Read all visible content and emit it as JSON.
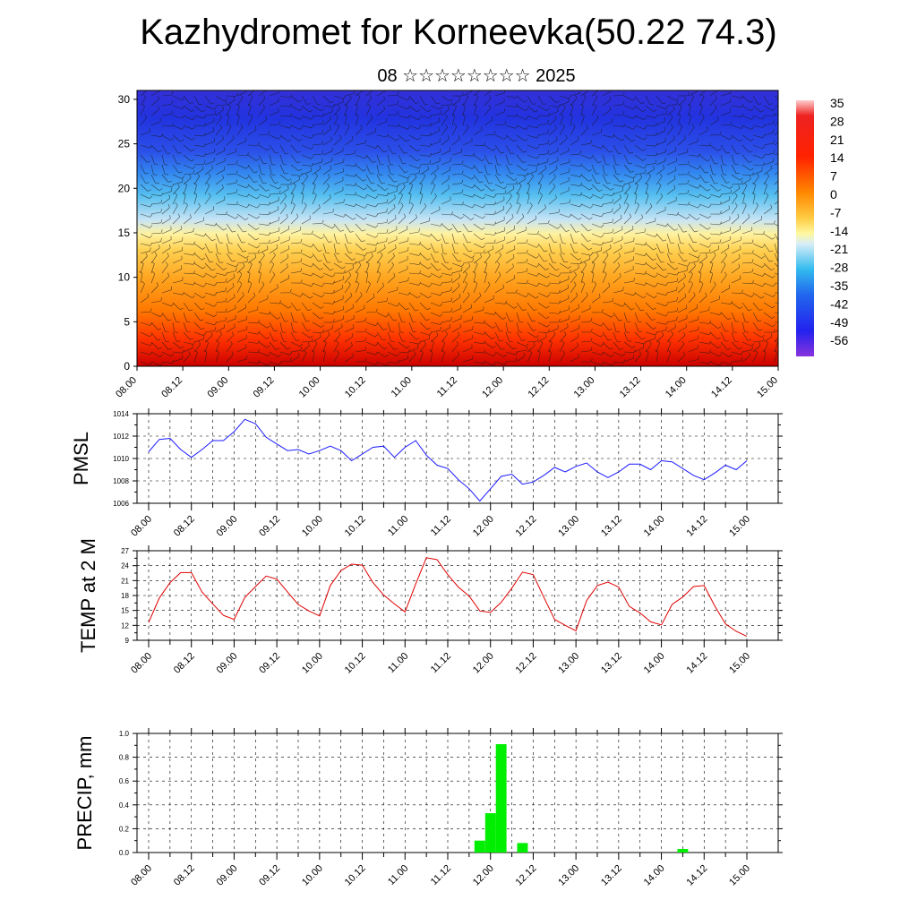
{
  "title": "Kazhydromet for Korneevka(50.22 74.3)",
  "subtitle": "08 ☆☆☆☆☆☆☆☆ 2025",
  "colors": {
    "pmsl_line": "#1a1aff",
    "temp_line": "#e00000",
    "precip_bar": "#00ee00"
  },
  "chart_data": [
    {
      "type": "heatmap",
      "title": "",
      "x_tick_labels": [
        "08.00",
        "08.12",
        "09.00",
        "09.12",
        "10.00",
        "10.12",
        "11.00",
        "11.12",
        "12.00",
        "12.12",
        "13.00",
        "13.12",
        "14.00",
        "14.12",
        "15.00"
      ],
      "y_tick_labels": [
        "0",
        "5",
        "10",
        "15",
        "20",
        "25",
        "30"
      ],
      "ylim": [
        0,
        31
      ],
      "colorbar_labels": [
        "35",
        "28",
        "21",
        "14",
        "7",
        "0",
        "-7",
        "-14",
        "-21",
        "-28",
        "-35",
        "-42",
        "-49",
        "-56"
      ],
      "overlay": "wind barbs"
    },
    {
      "type": "line",
      "ylabel": "PMSL",
      "ylim": [
        1006,
        1014
      ],
      "y_tick_labels": [
        "1014",
        "1012",
        "1010",
        "1008",
        "1006"
      ],
      "x_tick_labels": [
        "08.00",
        "08.12",
        "09.00",
        "09.12",
        "10.00",
        "10.12",
        "11.00",
        "11.12",
        "12.00",
        "12.12",
        "13.00",
        "13.12",
        "14.00",
        "14.12",
        "15.00"
      ],
      "series": [
        {
          "values": [
            1010.6,
            1011.7,
            1011.8,
            1010.8,
            1010.1,
            1010.8,
            1011.6,
            1011.6,
            1012.4,
            1013.5,
            1013.1,
            1011.9,
            1011.3,
            1010.7,
            1010.8,
            1010.4,
            1010.7,
            1011.1,
            1010.7,
            1009.8,
            1010.4,
            1011.0,
            1011.1,
            1010.1,
            1011.0,
            1011.6,
            1010.3,
            1009.4,
            1009.1,
            1008.1,
            1007.3,
            1006.2,
            1007.3,
            1008.4,
            1008.6,
            1007.7,
            1007.9,
            1008.5,
            1009.2,
            1008.8,
            1009.3,
            1009.6,
            1008.8,
            1008.3,
            1008.8,
            1009.5,
            1009.5,
            1009.0,
            1009.8,
            1009.7,
            1009.1,
            1008.5,
            1008.1,
            1008.7,
            1009.4,
            1009.0,
            1009.8
          ]
        }
      ]
    },
    {
      "type": "line",
      "ylabel": "TEMP at 2 M",
      "ylim": [
        9,
        27
      ],
      "y_tick_labels": [
        "27",
        "24",
        "21",
        "18",
        "15",
        "12",
        "9"
      ],
      "x_tick_labels": [
        "08.00",
        "08.12",
        "09.00",
        "09.12",
        "10.00",
        "10.12",
        "11.00",
        "11.12",
        "12.00",
        "12.12",
        "13.00",
        "13.12",
        "14.00",
        "14.12",
        "15.00"
      ],
      "series": [
        {
          "values": [
            12.6,
            17.5,
            20.6,
            22.6,
            22.6,
            18.7,
            16.3,
            14.0,
            13.2,
            17.6,
            19.8,
            21.9,
            21.3,
            18.7,
            16.2,
            14.9,
            13.9,
            20.0,
            23.0,
            24.3,
            24.1,
            20.6,
            18.1,
            16.3,
            14.7,
            20.3,
            25.6,
            25.2,
            22.2,
            19.7,
            17.9,
            14.9,
            14.6,
            16.6,
            19.5,
            22.7,
            22.2,
            17.6,
            13.2,
            12.0,
            10.9,
            17.0,
            20.0,
            20.7,
            19.7,
            15.8,
            14.5,
            12.7,
            12.1,
            16.2,
            17.7,
            19.8,
            20.0,
            15.9,
            12.3,
            10.8,
            9.8
          ]
        }
      ]
    },
    {
      "type": "bar",
      "ylabel": "PRECIP, mm",
      "ylim": [
        0,
        1.0
      ],
      "y_tick_labels": [
        "1.0",
        "0.8",
        "0.6",
        "0.4",
        "0.2",
        "0.0"
      ],
      "x_tick_labels": [
        "08.00",
        "08.12",
        "09.00",
        "09.12",
        "10.00",
        "10.12",
        "11.00",
        "11.12",
        "12.00",
        "12.12",
        "13.00",
        "13.12",
        "14.00",
        "14.12",
        "15.00"
      ],
      "series": [
        {
          "values": [
            0,
            0,
            0,
            0,
            0,
            0,
            0,
            0,
            0,
            0,
            0,
            0,
            0,
            0,
            0,
            0,
            0,
            0,
            0,
            0,
            0,
            0,
            0,
            0,
            0,
            0,
            0,
            0,
            0,
            0,
            0,
            0.1,
            0.33,
            0.91,
            0,
            0.08,
            0,
            0,
            0,
            0,
            0,
            0,
            0,
            0,
            0,
            0,
            0,
            0,
            0,
            0,
            0.03,
            0,
            0,
            0,
            0,
            0,
            0
          ]
        }
      ]
    }
  ]
}
